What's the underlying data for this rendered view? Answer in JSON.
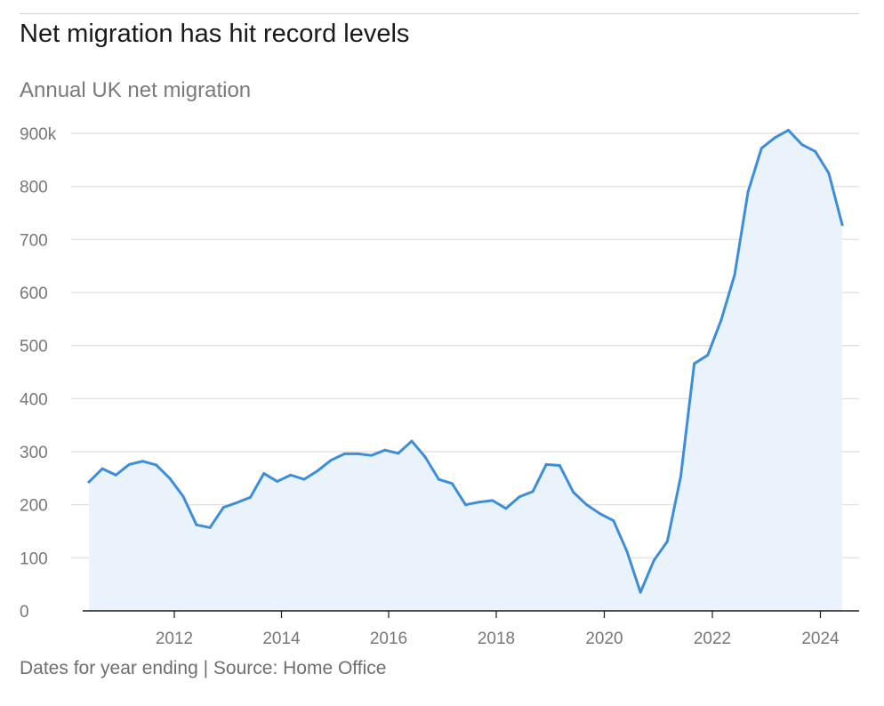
{
  "title": "Net migration has hit record levels",
  "subtitle": "Annual UK net migration",
  "footer": "Dates for year ending | Source: Home Office",
  "colors": {
    "line": "#3d8ddd",
    "area": "#eaf2fc",
    "grid": "#dddddd",
    "axis": "#1a1a1a"
  },
  "chart_data": {
    "type": "area",
    "title": "Net migration has hit record levels",
    "subtitle": "Annual UK net migration",
    "xlabel": "",
    "ylabel": "",
    "ylim": [
      0,
      900
    ],
    "xlim": [
      2010.3,
      2024.75
    ],
    "grid": true,
    "y_ticks": [
      {
        "value": 0,
        "label": "0"
      },
      {
        "value": 100,
        "label": "100"
      },
      {
        "value": 200,
        "label": "200"
      },
      {
        "value": 300,
        "label": "300"
      },
      {
        "value": 400,
        "label": "400"
      },
      {
        "value": 500,
        "label": "500"
      },
      {
        "value": 600,
        "label": "600"
      },
      {
        "value": 700,
        "label": "700"
      },
      {
        "value": 800,
        "label": "800"
      },
      {
        "value": 900,
        "label": "900k"
      }
    ],
    "x_ticks": [
      {
        "value": 2012,
        "label": "2012"
      },
      {
        "value": 2014,
        "label": "2014"
      },
      {
        "value": 2016,
        "label": "2016"
      },
      {
        "value": 2018,
        "label": "2018"
      },
      {
        "value": 2020,
        "label": "2020"
      },
      {
        "value": 2022,
        "label": "2022"
      },
      {
        "value": 2024,
        "label": "2024"
      }
    ],
    "x": [
      2010.5,
      2010.75,
      2011.0,
      2011.25,
      2011.5,
      2011.75,
      2012.0,
      2012.25,
      2012.5,
      2012.75,
      2013.0,
      2013.25,
      2013.5,
      2013.75,
      2014.0,
      2014.25,
      2014.5,
      2014.75,
      2015.0,
      2015.25,
      2015.5,
      2015.75,
      2016.0,
      2016.25,
      2016.5,
      2016.75,
      2017.0,
      2017.25,
      2017.5,
      2017.75,
      2018.0,
      2018.25,
      2018.5,
      2018.75,
      2019.0,
      2019.25,
      2019.5,
      2019.75,
      2020.0,
      2020.25,
      2020.5,
      2020.75,
      2021.0,
      2021.25,
      2021.5,
      2021.75,
      2022.0,
      2022.25,
      2022.5,
      2022.75,
      2023.0,
      2023.25,
      2023.5,
      2023.75,
      2024.0,
      2024.25,
      2024.5
    ],
    "series": [
      {
        "values": [
          243,
          268,
          256,
          276,
          282,
          275,
          250,
          216,
          162,
          157,
          195,
          204,
          214,
          259,
          244,
          256,
          248,
          264,
          284,
          296,
          296,
          293,
          303,
          297,
          320,
          290,
          248,
          240,
          200,
          205,
          208,
          193,
          215,
          225,
          276,
          274,
          224,
          200,
          183,
          170,
          112,
          35,
          95,
          131,
          254,
          466,
          482,
          548,
          633,
          790,
          872,
          892,
          906,
          879,
          866,
          825,
          728
        ]
      }
    ]
  }
}
